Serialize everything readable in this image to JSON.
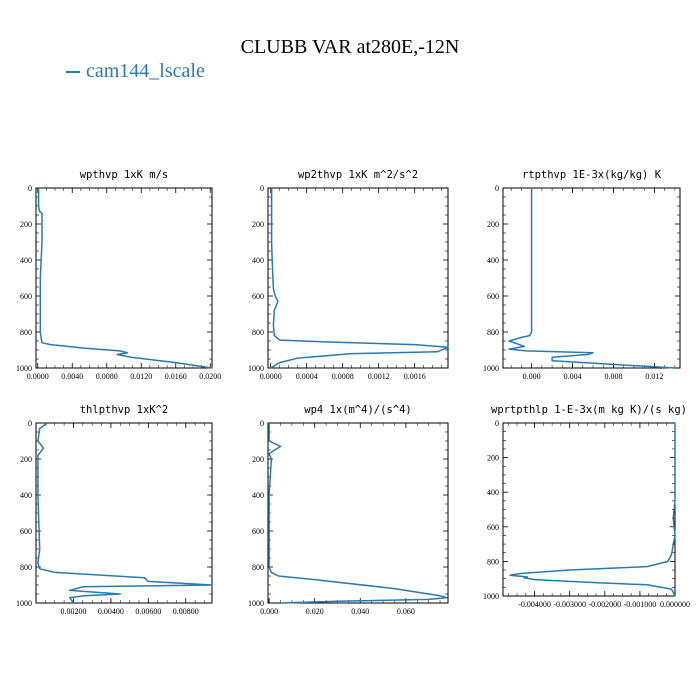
{
  "page_title": "CLUBB VAR at280E,-12N",
  "legend": {
    "label": "cam144_lscale",
    "color": "#2a7ab0"
  },
  "chart_data": [
    {
      "type": "line",
      "title": "wpthvp  1xK m/s",
      "xlim": [
        -0.0002,
        0.0202
      ],
      "ylim": [
        1000,
        0
      ],
      "xticks": [
        0.0,
        0.004,
        0.008,
        0.012,
        0.016,
        0.02
      ],
      "xticklabels": [
        "0.0000",
        "0.0040",
        "0.0080",
        "0.0120",
        "0.0160",
        "0.0200"
      ],
      "yticks": [
        0,
        200,
        400,
        600,
        800,
        1000
      ],
      "yticklabels": [
        "0",
        "200",
        "400",
        "600",
        "800",
        "1000"
      ],
      "series": [
        {
          "name": "cam144_lscale",
          "x": [
            0.0001,
            0.0001,
            0.0002,
            0.0005,
            0.0005,
            0.0003,
            0.0003,
            0.0003,
            0.0004,
            0.0005,
            0.0005,
            0.0015,
            0.0055,
            0.0095,
            0.0104,
            0.0092,
            0.0108,
            0.016,
            0.0202
          ],
          "y": [
            0,
            100,
            130,
            140,
            300,
            500,
            700,
            800,
            835,
            855,
            860,
            870,
            890,
            905,
            915,
            925,
            940,
            970,
            1000
          ]
        }
      ],
      "grid": false
    },
    {
      "type": "line",
      "title": "wp2thvp  1xK m^2/s^2",
      "xlim": [
        -3e-05,
        0.00197
      ],
      "ylim": [
        1000,
        0
      ],
      "xticks": [
        0.0,
        0.0004,
        0.0008,
        0.0012,
        0.0016
      ],
      "xticklabels": [
        "0.0000",
        "0.0004",
        "0.0008",
        "0.0012",
        "0.0016"
      ],
      "yticks": [
        0,
        200,
        400,
        600,
        800,
        1000
      ],
      "yticklabels": [
        "0",
        "200",
        "400",
        "600",
        "800",
        "1000"
      ],
      "series": [
        {
          "name": "cam144_lscale",
          "x": [
            1e-05,
            1e-05,
            2e-05,
            3e-05,
            5e-05,
            8e-05,
            4e-05,
            3e-05,
            4e-05,
            0.0001,
            0.0006,
            0.0016,
            0.00197,
            0.00185,
            0.0009,
            0.0003,
            0.0001,
            0.0
          ],
          "y": [
            0,
            300,
            450,
            560,
            600,
            630,
            680,
            760,
            820,
            845,
            855,
            870,
            885,
            910,
            920,
            945,
            970,
            1000
          ]
        }
      ],
      "grid": false
    },
    {
      "type": "line",
      "title": "rtpthvp  1E-3x(kg/kg) K",
      "xlim": [
        -0.0028,
        0.0145
      ],
      "ylim": [
        1000,
        0
      ],
      "xticks": [
        0.0,
        0.004,
        0.008,
        0.012
      ],
      "xticklabels": [
        "0.000",
        "0.004",
        "0.008",
        "0.012"
      ],
      "yticks": [
        0,
        200,
        400,
        600,
        800,
        1000
      ],
      "yticklabels": [
        "0",
        "200",
        "400",
        "600",
        "800",
        "1000"
      ],
      "series": [
        {
          "name": "cam144_lscale",
          "x": [
            0.0,
            0.0,
            0.0,
            0.0,
            0.0,
            -0.0002,
            -0.001,
            -0.0022,
            -0.0007,
            -0.0022,
            -0.0005,
            0.006,
            0.0055,
            0.002,
            0.002,
            0.014
          ],
          "y": [
            0,
            400,
            600,
            700,
            800,
            820,
            830,
            850,
            880,
            895,
            905,
            915,
            925,
            940,
            960,
            1000
          ]
        }
      ],
      "grid": false
    },
    {
      "type": "line",
      "title": "thlpthvp  1xK^2",
      "xlim": [
        0.0,
        0.0094
      ],
      "ylim": [
        1000,
        0
      ],
      "xticks": [
        0.002,
        0.004,
        0.006,
        0.008
      ],
      "xticklabels": [
        "0.00200",
        "0.00400",
        "0.00600",
        "0.00800"
      ],
      "yticks": [
        0,
        200,
        400,
        600,
        800,
        1000
      ],
      "yticklabels": [
        "0",
        "200",
        "400",
        "600",
        "800",
        "1000"
      ],
      "series": [
        {
          "name": "cam144_lscale",
          "x": [
            0.0006,
            0.0002,
            0.0001,
            0.0004,
            0.0001,
            0.0001,
            0.0002,
            0.0001,
            0.0002,
            0.001,
            0.0058,
            0.006,
            0.0094,
            0.0025,
            0.0018,
            0.0045,
            0.0026,
            0.0018,
            0.0019,
            0.002
          ],
          "y": [
            0,
            30,
            100,
            140,
            180,
            400,
            700,
            780,
            810,
            830,
            860,
            880,
            900,
            910,
            930,
            950,
            960,
            970,
            985,
            1000
          ]
        }
      ],
      "grid": false
    },
    {
      "type": "line",
      "title": "wp4  1x(m^4)/(s^4)",
      "xlim": [
        -0.0005,
        0.0785
      ],
      "ylim": [
        1000,
        0
      ],
      "xticks": [
        0.0,
        0.02,
        0.04,
        0.06
      ],
      "xticklabels": [
        "0.000",
        "0.020",
        "0.040",
        "0.060"
      ],
      "yticks": [
        0,
        200,
        400,
        600,
        800,
        1000
      ],
      "yticklabels": [
        "0",
        "200",
        "400",
        "600",
        "800",
        "1000"
      ],
      "series": [
        {
          "name": "cam144_lscale",
          "x": [
            0.0,
            0.0,
            0.005,
            0.0,
            0.001,
            0.0,
            0.0,
            0.001,
            0.004,
            0.02,
            0.055,
            0.075,
            0.078,
            0.07,
            0.03,
            0.005
          ],
          "y": [
            0,
            100,
            130,
            170,
            200,
            400,
            800,
            830,
            850,
            870,
            920,
            960,
            970,
            980,
            990,
            1000
          ]
        }
      ],
      "grid": false
    },
    {
      "type": "line",
      "title": "wprtpthlp  1-E-3x(m kg K)/(s kg)",
      "xlim": [
        -0.0049,
        0.0
      ],
      "ylim": [
        1000,
        0
      ],
      "xticks": [
        -0.004,
        -0.003,
        -0.002,
        -0.001,
        0.0
      ],
      "xticklabels": [
        "-0.004000",
        "-0.003000",
        "-0.002000",
        "-0.001000",
        "0.000000"
      ],
      "yticks": [
        0,
        200,
        400,
        600,
        800,
        1000
      ],
      "yticklabels": [
        "0",
        "200",
        "400",
        "600",
        "800",
        "1000"
      ],
      "series": [
        {
          "name": "cam144_lscale",
          "x": [
            0.0,
            0.0,
            -5e-05,
            0.0,
            -0.0001,
            -0.0002,
            -0.0008,
            -0.003,
            -0.0044,
            -0.0047,
            -0.0042,
            -0.0043,
            -0.004,
            -0.0025,
            -0.0008,
            -0.0001,
            0.0
          ],
          "y": [
            0,
            450,
            550,
            650,
            760,
            800,
            830,
            850,
            870,
            880,
            890,
            895,
            905,
            920,
            935,
            960,
            1000
          ]
        }
      ],
      "grid": false
    }
  ]
}
